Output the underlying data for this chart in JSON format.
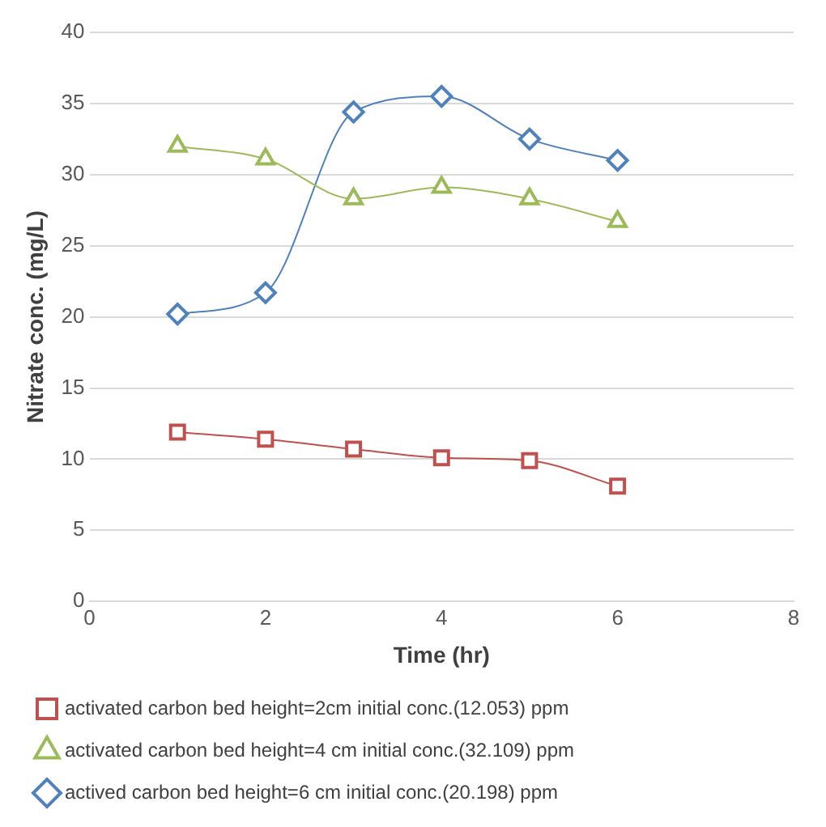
{
  "chart_data": {
    "type": "line",
    "xlabel": "Time (hr)",
    "ylabel": "Nitrate conc. (mg/L)",
    "x": [
      1,
      2,
      3,
      4,
      5,
      6
    ],
    "xlim": [
      0,
      8
    ],
    "xticks": [
      0,
      2,
      4,
      6,
      8
    ],
    "ylim": [
      0,
      40
    ],
    "yticks": [
      0,
      5,
      10,
      15,
      20,
      25,
      30,
      35,
      40
    ],
    "grid": "y",
    "legend": "bottom",
    "line_style": "solid",
    "series": [
      {
        "name": "activated carbon bed height=2cm initial conc.(12.053) ppm",
        "color": "#c0504d",
        "marker": "square",
        "values": [
          11.9,
          11.4,
          10.7,
          10.1,
          9.9,
          8.1
        ]
      },
      {
        "name": "activated carbon bed height=4 cm initial conc.(32.109) ppm",
        "color": "#9bbb59",
        "marker": "triangle",
        "values": [
          32,
          31.1,
          28.3,
          29.1,
          28.3,
          26.7
        ]
      },
      {
        "name": "actived carbon bed height=6 cm initial conc.(20.198) ppm",
        "color": "#4f81bd",
        "marker": "diamond",
        "values": [
          20.2,
          21.7,
          34.4,
          35.5,
          32.5,
          31
        ]
      }
    ]
  }
}
